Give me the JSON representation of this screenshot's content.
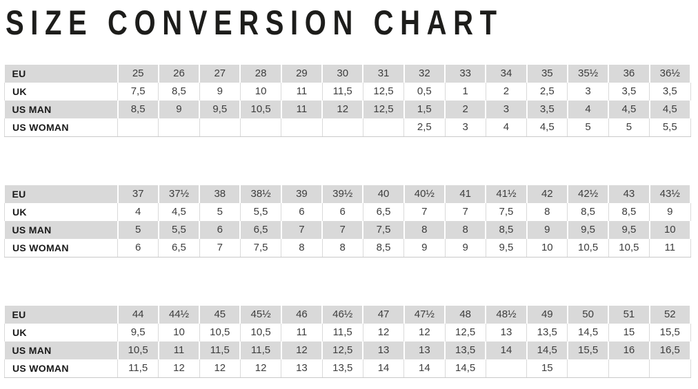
{
  "title": "SIZE CONVERSION CHART",
  "colors": {
    "row_shaded": "#d9d9d9",
    "value_text": "#3d3d3d",
    "label_text": "#1a1a1a",
    "title_text": "#1d1d1b",
    "edge_border": "#c9c9c9"
  },
  "chart_data": {
    "type": "table",
    "title": "SIZE CONVERSION CHART",
    "decimal_separator": ",",
    "row_headers": [
      "EU",
      "UK",
      "US MAN",
      "US WOMAN"
    ],
    "tables": [
      {
        "rows": [
          {
            "label": "EU",
            "values": [
              "25",
              "26",
              "27",
              "28",
              "29",
              "30",
              "31",
              "32",
              "33",
              "34",
              "35",
              "35½",
              "36",
              "36½"
            ]
          },
          {
            "label": "UK",
            "values": [
              "7,5",
              "8,5",
              "9",
              "10",
              "11",
              "11,5",
              "12,5",
              "0,5",
              "1",
              "2",
              "2,5",
              "3",
              "3,5",
              "3,5"
            ]
          },
          {
            "label": "US MAN",
            "values": [
              "8,5",
              "9",
              "9,5",
              "10,5",
              "11",
              "12",
              "12,5",
              "1,5",
              "2",
              "3",
              "3,5",
              "4",
              "4,5",
              "4,5"
            ]
          },
          {
            "label": "US WOMAN",
            "values": [
              "",
              "",
              "",
              "",
              "",
              "",
              "",
              "2,5",
              "3",
              "4",
              "4,5",
              "5",
              "5",
              "5,5"
            ]
          }
        ]
      },
      {
        "rows": [
          {
            "label": "EU",
            "values": [
              "37",
              "37½",
              "38",
              "38½",
              "39",
              "39½",
              "40",
              "40½",
              "41",
              "41½",
              "42",
              "42½",
              "43",
              "43½"
            ]
          },
          {
            "label": "UK",
            "values": [
              "4",
              "4,5",
              "5",
              "5,5",
              "6",
              "6",
              "6,5",
              "7",
              "7",
              "7,5",
              "8",
              "8,5",
              "8,5",
              "9"
            ]
          },
          {
            "label": "US MAN",
            "values": [
              "5",
              "5,5",
              "6",
              "6,5",
              "7",
              "7",
              "7,5",
              "8",
              "8",
              "8,5",
              "9",
              "9,5",
              "9,5",
              "10"
            ]
          },
          {
            "label": "US WOMAN",
            "values": [
              "6",
              "6,5",
              "7",
              "7,5",
              "8",
              "8",
              "8,5",
              "9",
              "9",
              "9,5",
              "10",
              "10,5",
              "10,5",
              "11"
            ]
          }
        ]
      },
      {
        "rows": [
          {
            "label": "EU",
            "values": [
              "44",
              "44½",
              "45",
              "45½",
              "46",
              "46½",
              "47",
              "47½",
              "48",
              "48½",
              "49",
              "50",
              "51",
              "52"
            ]
          },
          {
            "label": "UK",
            "values": [
              "9,5",
              "10",
              "10,5",
              "10,5",
              "11",
              "11,5",
              "12",
              "12",
              "12,5",
              "13",
              "13,5",
              "14,5",
              "15",
              "15,5"
            ]
          },
          {
            "label": "US MAN",
            "values": [
              "10,5",
              "11",
              "11,5",
              "11,5",
              "12",
              "12,5",
              "13",
              "13",
              "13,5",
              "14",
              "14,5",
              "15,5",
              "16",
              "16,5"
            ]
          },
          {
            "label": "US WOMAN",
            "values": [
              "11,5",
              "12",
              "12",
              "12",
              "13",
              "13,5",
              "14",
              "14",
              "14,5",
              "",
              "15",
              "",
              "",
              ""
            ]
          }
        ]
      }
    ]
  }
}
